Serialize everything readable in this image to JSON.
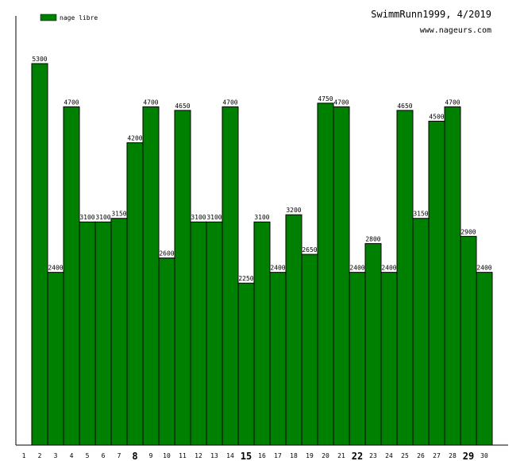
{
  "header": {
    "title": "SwimmRunn1999, 4/2019",
    "site": "www.nageurs.com"
  },
  "colors": {
    "bar": "#008000",
    "bar_outline": "#000000",
    "background": "#ffffff"
  },
  "chart_data": {
    "type": "bar",
    "title": "SwimmRunn1999, 4/2019",
    "xlabel": "",
    "ylabel": "",
    "legend_position": "top-left",
    "grid": false,
    "ylim": [
      0,
      5300
    ],
    "emphasized_categories": [
      "8",
      "15",
      "22",
      "29"
    ],
    "categories": [
      "1",
      "2",
      "3",
      "4",
      "5",
      "6",
      "7",
      "8",
      "9",
      "10",
      "11",
      "12",
      "13",
      "14",
      "15",
      "16",
      "17",
      "18",
      "19",
      "20",
      "21",
      "22",
      "23",
      "24",
      "25",
      "26",
      "27",
      "28",
      "29",
      "30"
    ],
    "series": [
      {
        "name": "nage libre",
        "values": [
          null,
          5300,
          2400,
          4700,
          3100,
          3100,
          3150,
          4200,
          4700,
          2600,
          4650,
          3100,
          3100,
          4700,
          2250,
          3100,
          2400,
          3200,
          2650,
          4750,
          4700,
          2400,
          2800,
          2400,
          4650,
          3150,
          4500,
          4700,
          2900,
          2400
        ]
      }
    ]
  }
}
